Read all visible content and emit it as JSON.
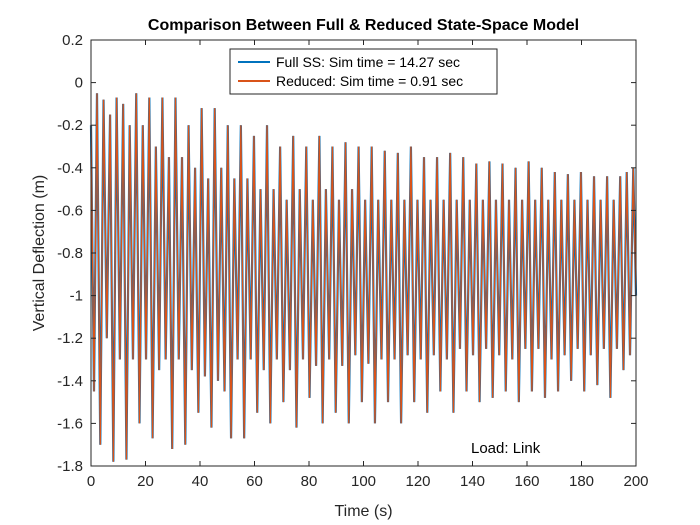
{
  "chart_data": {
    "type": "line",
    "title": "Comparison Between Full & Reduced State-Space Model",
    "xlabel": "Time (s)",
    "ylabel": "Vertical Deflection (m)",
    "xlim": [
      0,
      200
    ],
    "ylim": [
      -1.8,
      0.2
    ],
    "xticks": [
      0,
      20,
      40,
      60,
      80,
      100,
      120,
      140,
      160,
      180,
      200
    ],
    "yticks": [
      0.2,
      0,
      -0.2,
      -0.4,
      -0.6,
      -0.8,
      -1,
      -1.2,
      -1.4,
      -1.6,
      -1.8
    ],
    "xtick_labels": [
      "0",
      "20",
      "40",
      "60",
      "80",
      "100",
      "120",
      "140",
      "160",
      "180",
      "200"
    ],
    "ytick_labels": [
      "0.2",
      "0",
      "-0.2",
      "-0.4",
      "-0.6",
      "-0.8",
      "-1",
      "-1.2",
      "-1.4",
      "-1.6",
      "-1.8"
    ],
    "grid": false,
    "legend_position": "top-center",
    "annotation": "Load: Link",
    "series": [
      {
        "name": "Full SS: Sim time = 14.27 sec",
        "color": "#0072BD",
        "peaks": [
          [
            0.0,
            -0.2
          ],
          [
            2.2,
            -0.05
          ],
          [
            4.6,
            -0.08
          ],
          [
            7.0,
            -0.15
          ],
          [
            9.4,
            -0.07
          ],
          [
            11.8,
            -0.1
          ],
          [
            14.2,
            -0.2
          ],
          [
            16.6,
            -0.05
          ],
          [
            19.0,
            -0.2
          ],
          [
            21.4,
            -0.07
          ],
          [
            23.8,
            -0.3
          ],
          [
            26.2,
            -0.07
          ],
          [
            28.6,
            -0.35
          ],
          [
            31.0,
            -0.07
          ],
          [
            33.4,
            -0.35
          ],
          [
            35.8,
            -0.2
          ],
          [
            38.2,
            -0.4
          ],
          [
            40.6,
            -0.12
          ],
          [
            43.0,
            -0.45
          ],
          [
            45.4,
            -0.12
          ],
          [
            47.8,
            -0.4
          ],
          [
            50.2,
            -0.2
          ],
          [
            52.6,
            -0.45
          ],
          [
            55.0,
            -0.2
          ],
          [
            57.4,
            -0.45
          ],
          [
            59.8,
            -0.25
          ],
          [
            62.2,
            -0.5
          ],
          [
            64.6,
            -0.2
          ],
          [
            67.0,
            -0.5
          ],
          [
            69.4,
            -0.3
          ],
          [
            71.8,
            -0.55
          ],
          [
            74.2,
            -0.25
          ],
          [
            76.6,
            -0.5
          ],
          [
            79.0,
            -0.3
          ],
          [
            81.4,
            -0.55
          ],
          [
            83.8,
            -0.25
          ],
          [
            86.2,
            -0.5
          ],
          [
            88.6,
            -0.3
          ],
          [
            91.0,
            -0.55
          ],
          [
            93.4,
            -0.28
          ],
          [
            95.8,
            -0.5
          ],
          [
            98.2,
            -0.3
          ],
          [
            100.6,
            -0.55
          ],
          [
            103.0,
            -0.3
          ],
          [
            105.4,
            -0.55
          ],
          [
            107.8,
            -0.32
          ],
          [
            110.2,
            -0.55
          ],
          [
            112.6,
            -0.33
          ],
          [
            115.0,
            -0.55
          ],
          [
            117.4,
            -0.3
          ],
          [
            119.8,
            -0.55
          ],
          [
            122.2,
            -0.35
          ],
          [
            124.6,
            -0.55
          ],
          [
            127.0,
            -0.35
          ],
          [
            129.4,
            -0.55
          ],
          [
            131.8,
            -0.33
          ],
          [
            134.2,
            -0.55
          ],
          [
            136.6,
            -0.35
          ],
          [
            139.0,
            -0.55
          ],
          [
            141.4,
            -0.38
          ],
          [
            143.8,
            -0.55
          ],
          [
            146.2,
            -0.37
          ],
          [
            148.6,
            -0.55
          ],
          [
            151.0,
            -0.38
          ],
          [
            153.4,
            -0.55
          ],
          [
            155.8,
            -0.4
          ],
          [
            158.2,
            -0.55
          ],
          [
            160.6,
            -0.37
          ],
          [
            163.0,
            -0.55
          ],
          [
            165.4,
            -0.4
          ],
          [
            167.8,
            -0.55
          ],
          [
            170.2,
            -0.42
          ],
          [
            172.6,
            -0.55
          ],
          [
            175.0,
            -0.43
          ],
          [
            177.4,
            -0.55
          ],
          [
            179.8,
            -0.42
          ],
          [
            182.2,
            -0.55
          ],
          [
            184.6,
            -0.44
          ],
          [
            187.0,
            -0.55
          ],
          [
            189.4,
            -0.44
          ],
          [
            191.8,
            -0.55
          ],
          [
            194.2,
            -0.44
          ],
          [
            196.6,
            -0.42
          ],
          [
            199.0,
            -0.4
          ]
        ],
        "troughs": [
          [
            1.1,
            -1.45
          ],
          [
            3.4,
            -1.7
          ],
          [
            5.8,
            -1.2
          ],
          [
            8.2,
            -1.78
          ],
          [
            10.6,
            -1.3
          ],
          [
            13.0,
            -1.77
          ],
          [
            15.4,
            -1.3
          ],
          [
            17.8,
            -1.6
          ],
          [
            20.2,
            -1.3
          ],
          [
            22.6,
            -1.67
          ],
          [
            25.0,
            -1.35
          ],
          [
            27.4,
            -1.3
          ],
          [
            29.8,
            -1.72
          ],
          [
            32.2,
            -1.3
          ],
          [
            34.6,
            -1.7
          ],
          [
            37.0,
            -1.35
          ],
          [
            39.4,
            -1.55
          ],
          [
            41.8,
            -1.38
          ],
          [
            44.2,
            -1.62
          ],
          [
            46.6,
            -1.4
          ],
          [
            49.0,
            -1.45
          ],
          [
            51.4,
            -1.67
          ],
          [
            53.8,
            -1.3
          ],
          [
            56.2,
            -1.67
          ],
          [
            58.6,
            -1.3
          ],
          [
            61.0,
            -1.55
          ],
          [
            63.4,
            -1.35
          ],
          [
            65.8,
            -1.6
          ],
          [
            68.2,
            -1.3
          ],
          [
            70.6,
            -1.5
          ],
          [
            73.0,
            -1.35
          ],
          [
            75.4,
            -1.62
          ],
          [
            77.8,
            -1.3
          ],
          [
            80.2,
            -1.48
          ],
          [
            82.6,
            -1.33
          ],
          [
            85.0,
            -1.6
          ],
          [
            87.4,
            -1.3
          ],
          [
            89.8,
            -1.55
          ],
          [
            92.2,
            -1.33
          ],
          [
            94.6,
            -1.6
          ],
          [
            97.0,
            -1.28
          ],
          [
            99.4,
            -1.5
          ],
          [
            101.8,
            -1.32
          ],
          [
            104.2,
            -1.6
          ],
          [
            106.6,
            -1.3
          ],
          [
            109.0,
            -1.5
          ],
          [
            111.4,
            -1.3
          ],
          [
            113.8,
            -1.6
          ],
          [
            116.2,
            -1.28
          ],
          [
            118.6,
            -1.5
          ],
          [
            121.0,
            -1.3
          ],
          [
            123.4,
            -1.55
          ],
          [
            125.8,
            -1.28
          ],
          [
            128.2,
            -1.45
          ],
          [
            130.6,
            -1.3
          ],
          [
            133.0,
            -1.55
          ],
          [
            135.4,
            -1.25
          ],
          [
            137.8,
            -1.45
          ],
          [
            140.2,
            -1.28
          ],
          [
            142.6,
            -1.5
          ],
          [
            145.0,
            -1.25
          ],
          [
            147.4,
            -1.48
          ],
          [
            149.8,
            -1.28
          ],
          [
            152.2,
            -1.45
          ],
          [
            154.6,
            -1.3
          ],
          [
            157.0,
            -1.5
          ],
          [
            159.4,
            -1.25
          ],
          [
            161.8,
            -1.45
          ],
          [
            164.2,
            -1.25
          ],
          [
            166.6,
            -1.48
          ],
          [
            169.0,
            -1.3
          ],
          [
            171.4,
            -1.45
          ],
          [
            173.8,
            -1.28
          ],
          [
            176.2,
            -1.4
          ],
          [
            178.6,
            -1.25
          ],
          [
            181.0,
            -1.45
          ],
          [
            183.4,
            -1.28
          ],
          [
            185.8,
            -1.42
          ],
          [
            188.2,
            -1.25
          ],
          [
            190.6,
            -1.48
          ],
          [
            193.0,
            -1.25
          ],
          [
            195.4,
            -1.35
          ],
          [
            197.8,
            -1.28
          ],
          [
            200.0,
            -1.0
          ]
        ]
      },
      {
        "name": "Reduced: Sim time = 0.91 sec",
        "color": "#D95319",
        "same_as_full": true
      }
    ]
  }
}
